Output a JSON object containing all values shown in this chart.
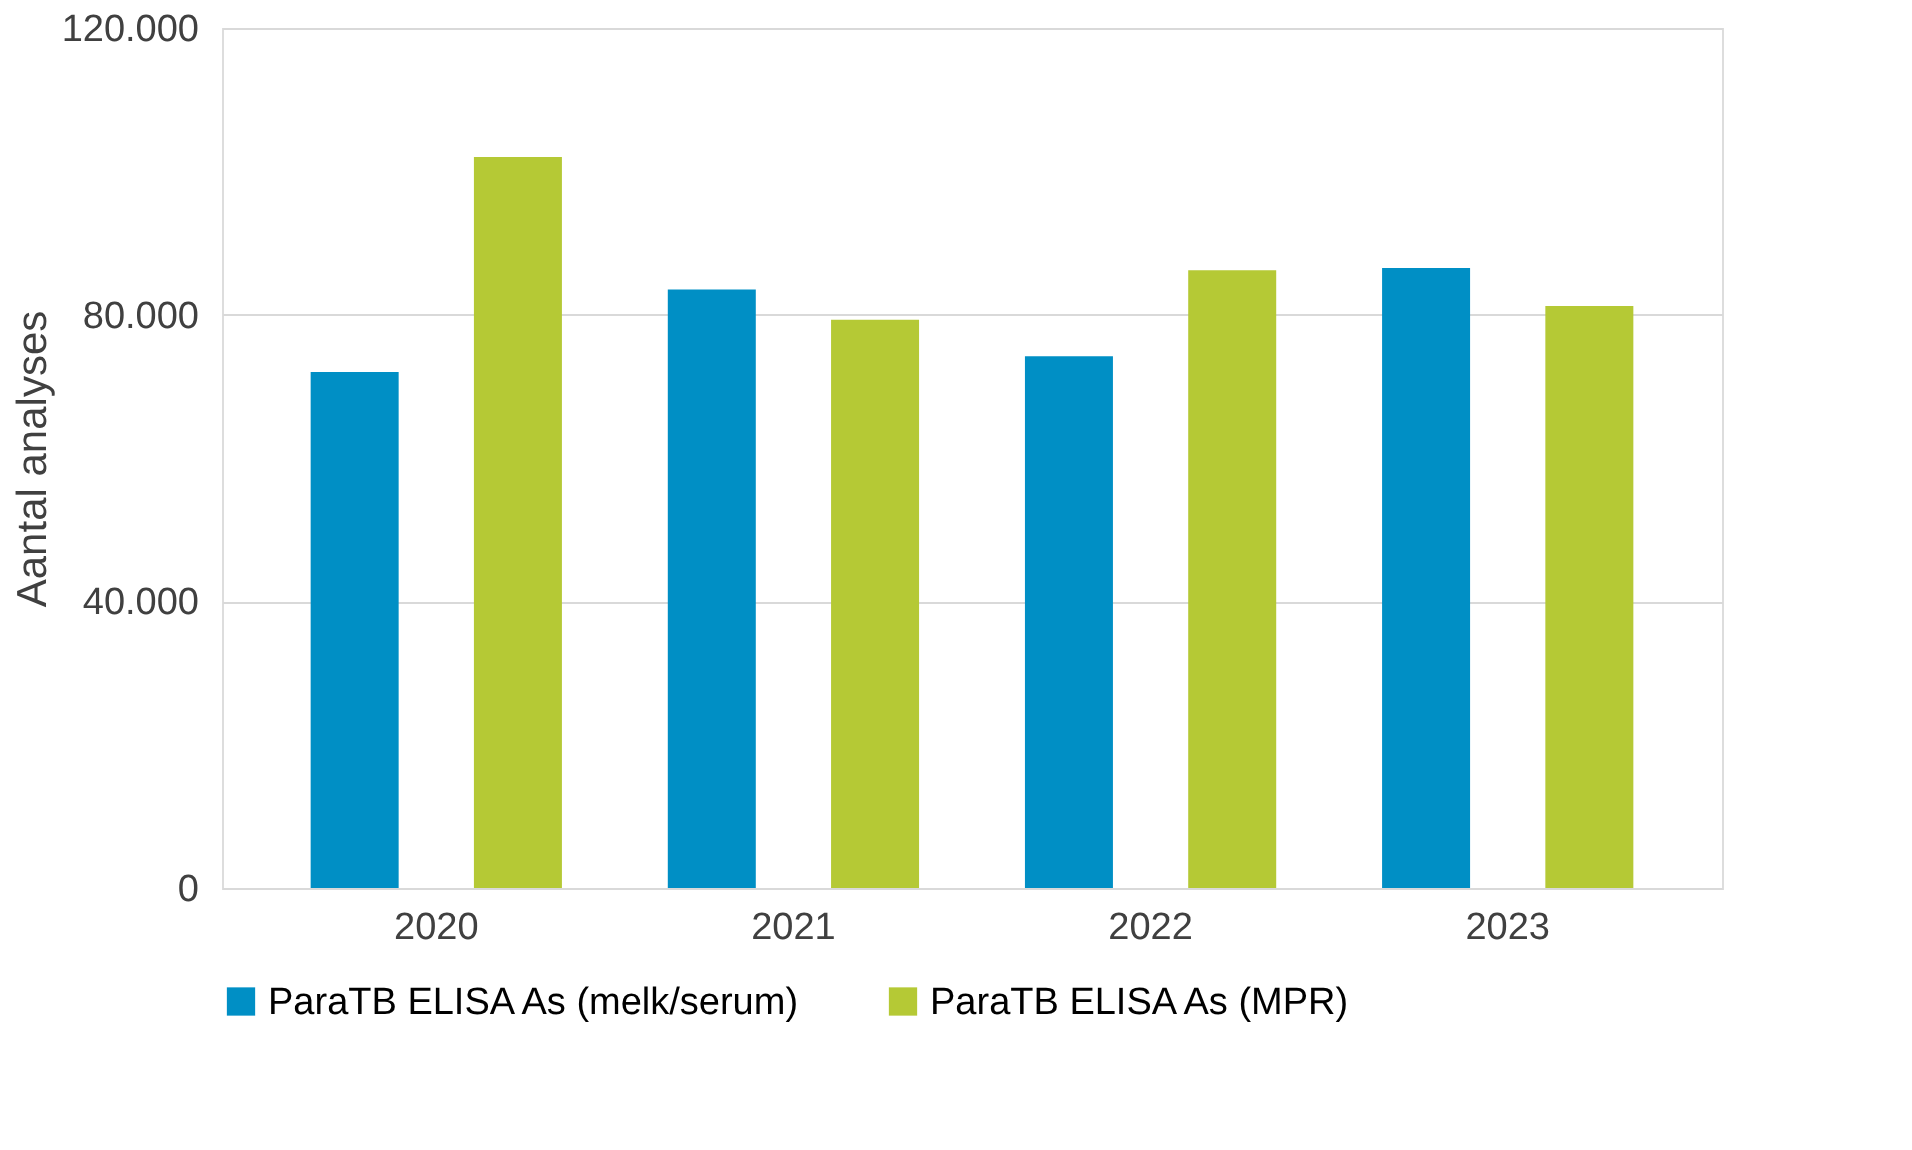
{
  "chart_data": {
    "type": "bar",
    "ylabel": "Aantal analyses",
    "categories": [
      "2020",
      "2021",
      "2022",
      "2023"
    ],
    "series": [
      {
        "name": "ParaTB ELISA As (melk/serum)",
        "color": "#008fc5",
        "values": [
          72000,
          83500,
          74200,
          86500
        ]
      },
      {
        "name": "ParaTB ELISA As (MPR)",
        "color": "#b5c935",
        "values": [
          102000,
          79300,
          86200,
          81200
        ]
      }
    ],
    "ylim": [
      0,
      120000
    ],
    "yticks": [
      {
        "value": 0,
        "label": "0"
      },
      {
        "value": 40000,
        "label": "40.000"
      },
      {
        "value": 80000,
        "label": "80.000"
      },
      {
        "value": 120000,
        "label": "120.000"
      }
    ],
    "grid": "y",
    "legend": "bottom"
  }
}
